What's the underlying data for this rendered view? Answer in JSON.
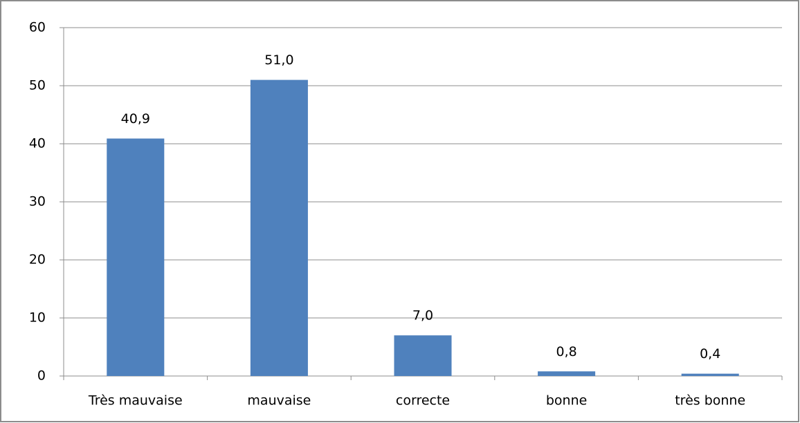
{
  "chart_data": {
    "type": "bar",
    "categories": [
      "Très mauvaise",
      "mauvaise",
      "correcte",
      "bonne",
      "très bonne"
    ],
    "values": [
      40.9,
      51.0,
      7.0,
      0.8,
      0.4
    ],
    "value_labels": [
      "40,9",
      "51,0",
      "7,0",
      "0,8",
      "0,4"
    ],
    "color": "#4f81bd",
    "ylim": [
      0,
      60
    ],
    "yticks": [
      0,
      10,
      20,
      30,
      40,
      50,
      60
    ],
    "grid": true
  }
}
